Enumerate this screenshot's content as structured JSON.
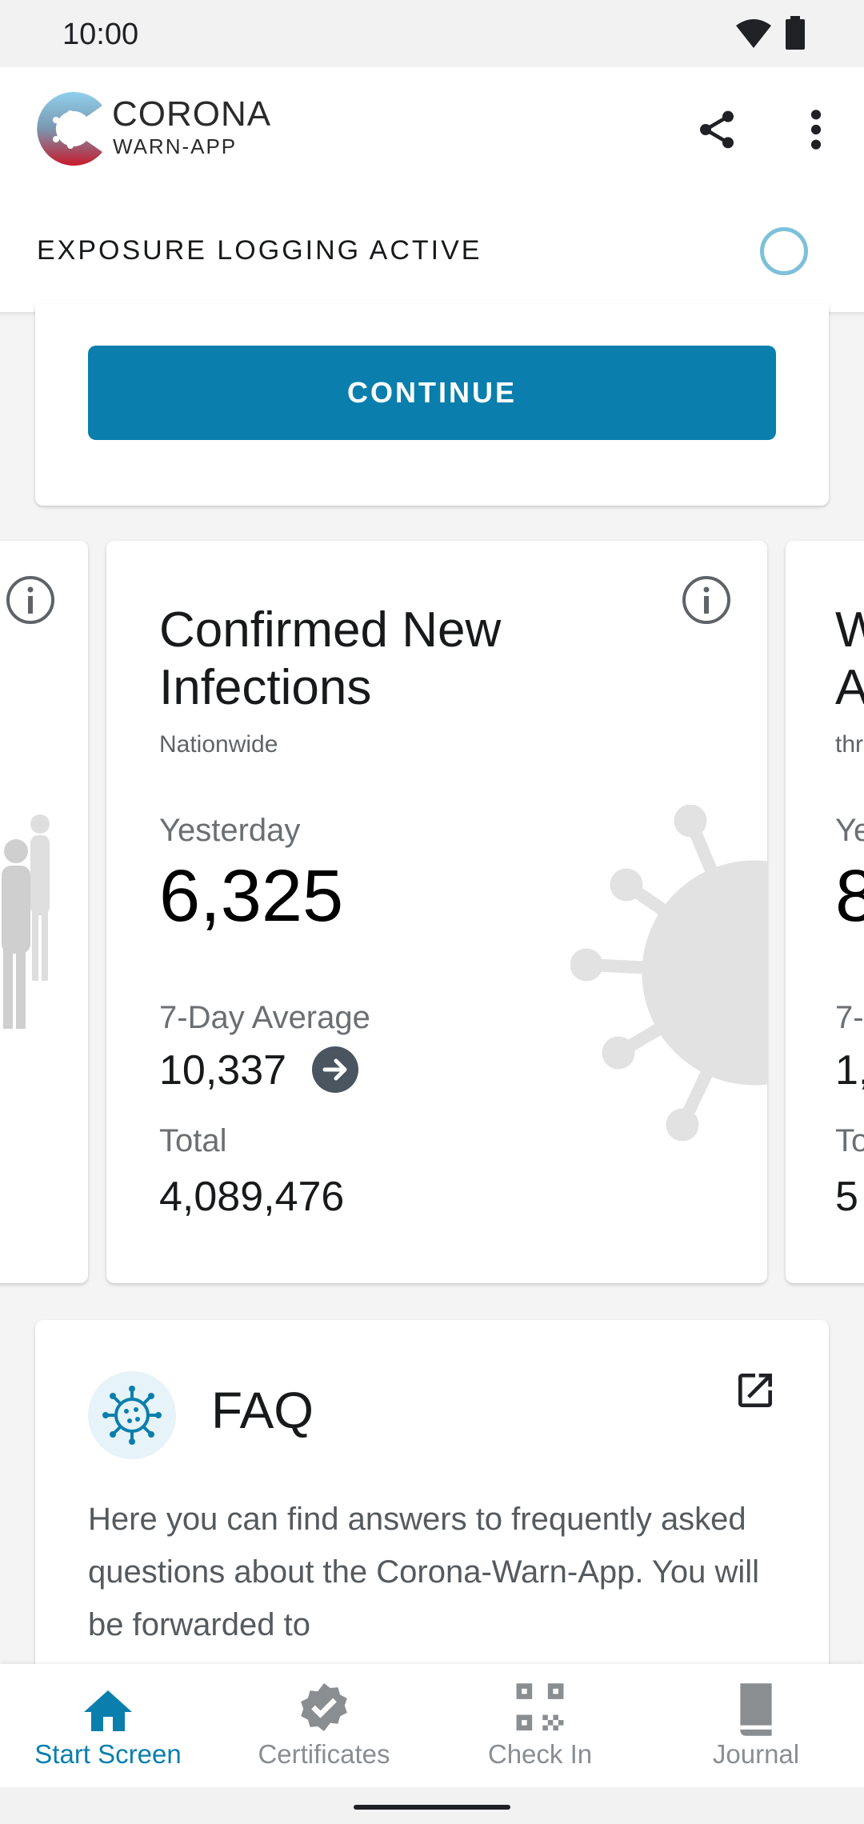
{
  "status_bar": {
    "time": "10:00",
    "wifi_icon": "wifi-icon",
    "battery_icon": "battery-icon"
  },
  "app_bar": {
    "brand_line1": "CORONA",
    "brand_line2": "WARN-APP",
    "share_icon": "share-icon",
    "more_icon": "more-vert-icon",
    "exposure_status": "EXPOSURE LOGGING ACTIVE",
    "colors": {
      "accent": "#0A7FAD",
      "status_ring": "#7DC0D9"
    }
  },
  "top_card": {
    "continue_label": "CONTINUE"
  },
  "stats": {
    "left_card": {
      "icon": "info-icon"
    },
    "main_card": {
      "title_line1": "Confirmed New",
      "title_line2": "Infections",
      "subtitle": "Nationwide",
      "yesterday_label": "Yesterday",
      "yesterday_value": "6,325",
      "avg_label": "7-Day Average",
      "avg_value": "10,337",
      "trend_icon": "arrow-right-icon",
      "total_label": "Total",
      "total_value": "4,089,476"
    },
    "right_card": {
      "title_line1": "W",
      "title_line2": "A",
      "subtitle": "thr",
      "yesterday_label": "Ye",
      "yesterday_value": "8",
      "avg_label": "7-",
      "avg_value": "1,",
      "total_label": "To",
      "total_value": "5"
    }
  },
  "faq": {
    "title": "FAQ",
    "external_icon": "open-external-icon",
    "text": "Here you can find answers to frequently asked questions about the Corona-Warn-App. You will be forwarded to"
  },
  "bottom_nav": {
    "items": [
      {
        "label": "Start Screen",
        "icon": "home-icon",
        "active": true
      },
      {
        "label": "Certificates",
        "icon": "certificate-badge-icon",
        "active": false
      },
      {
        "label": "Check In",
        "icon": "qr-code-icon",
        "active": false
      },
      {
        "label": "Journal",
        "icon": "journal-book-icon",
        "active": false
      }
    ]
  }
}
